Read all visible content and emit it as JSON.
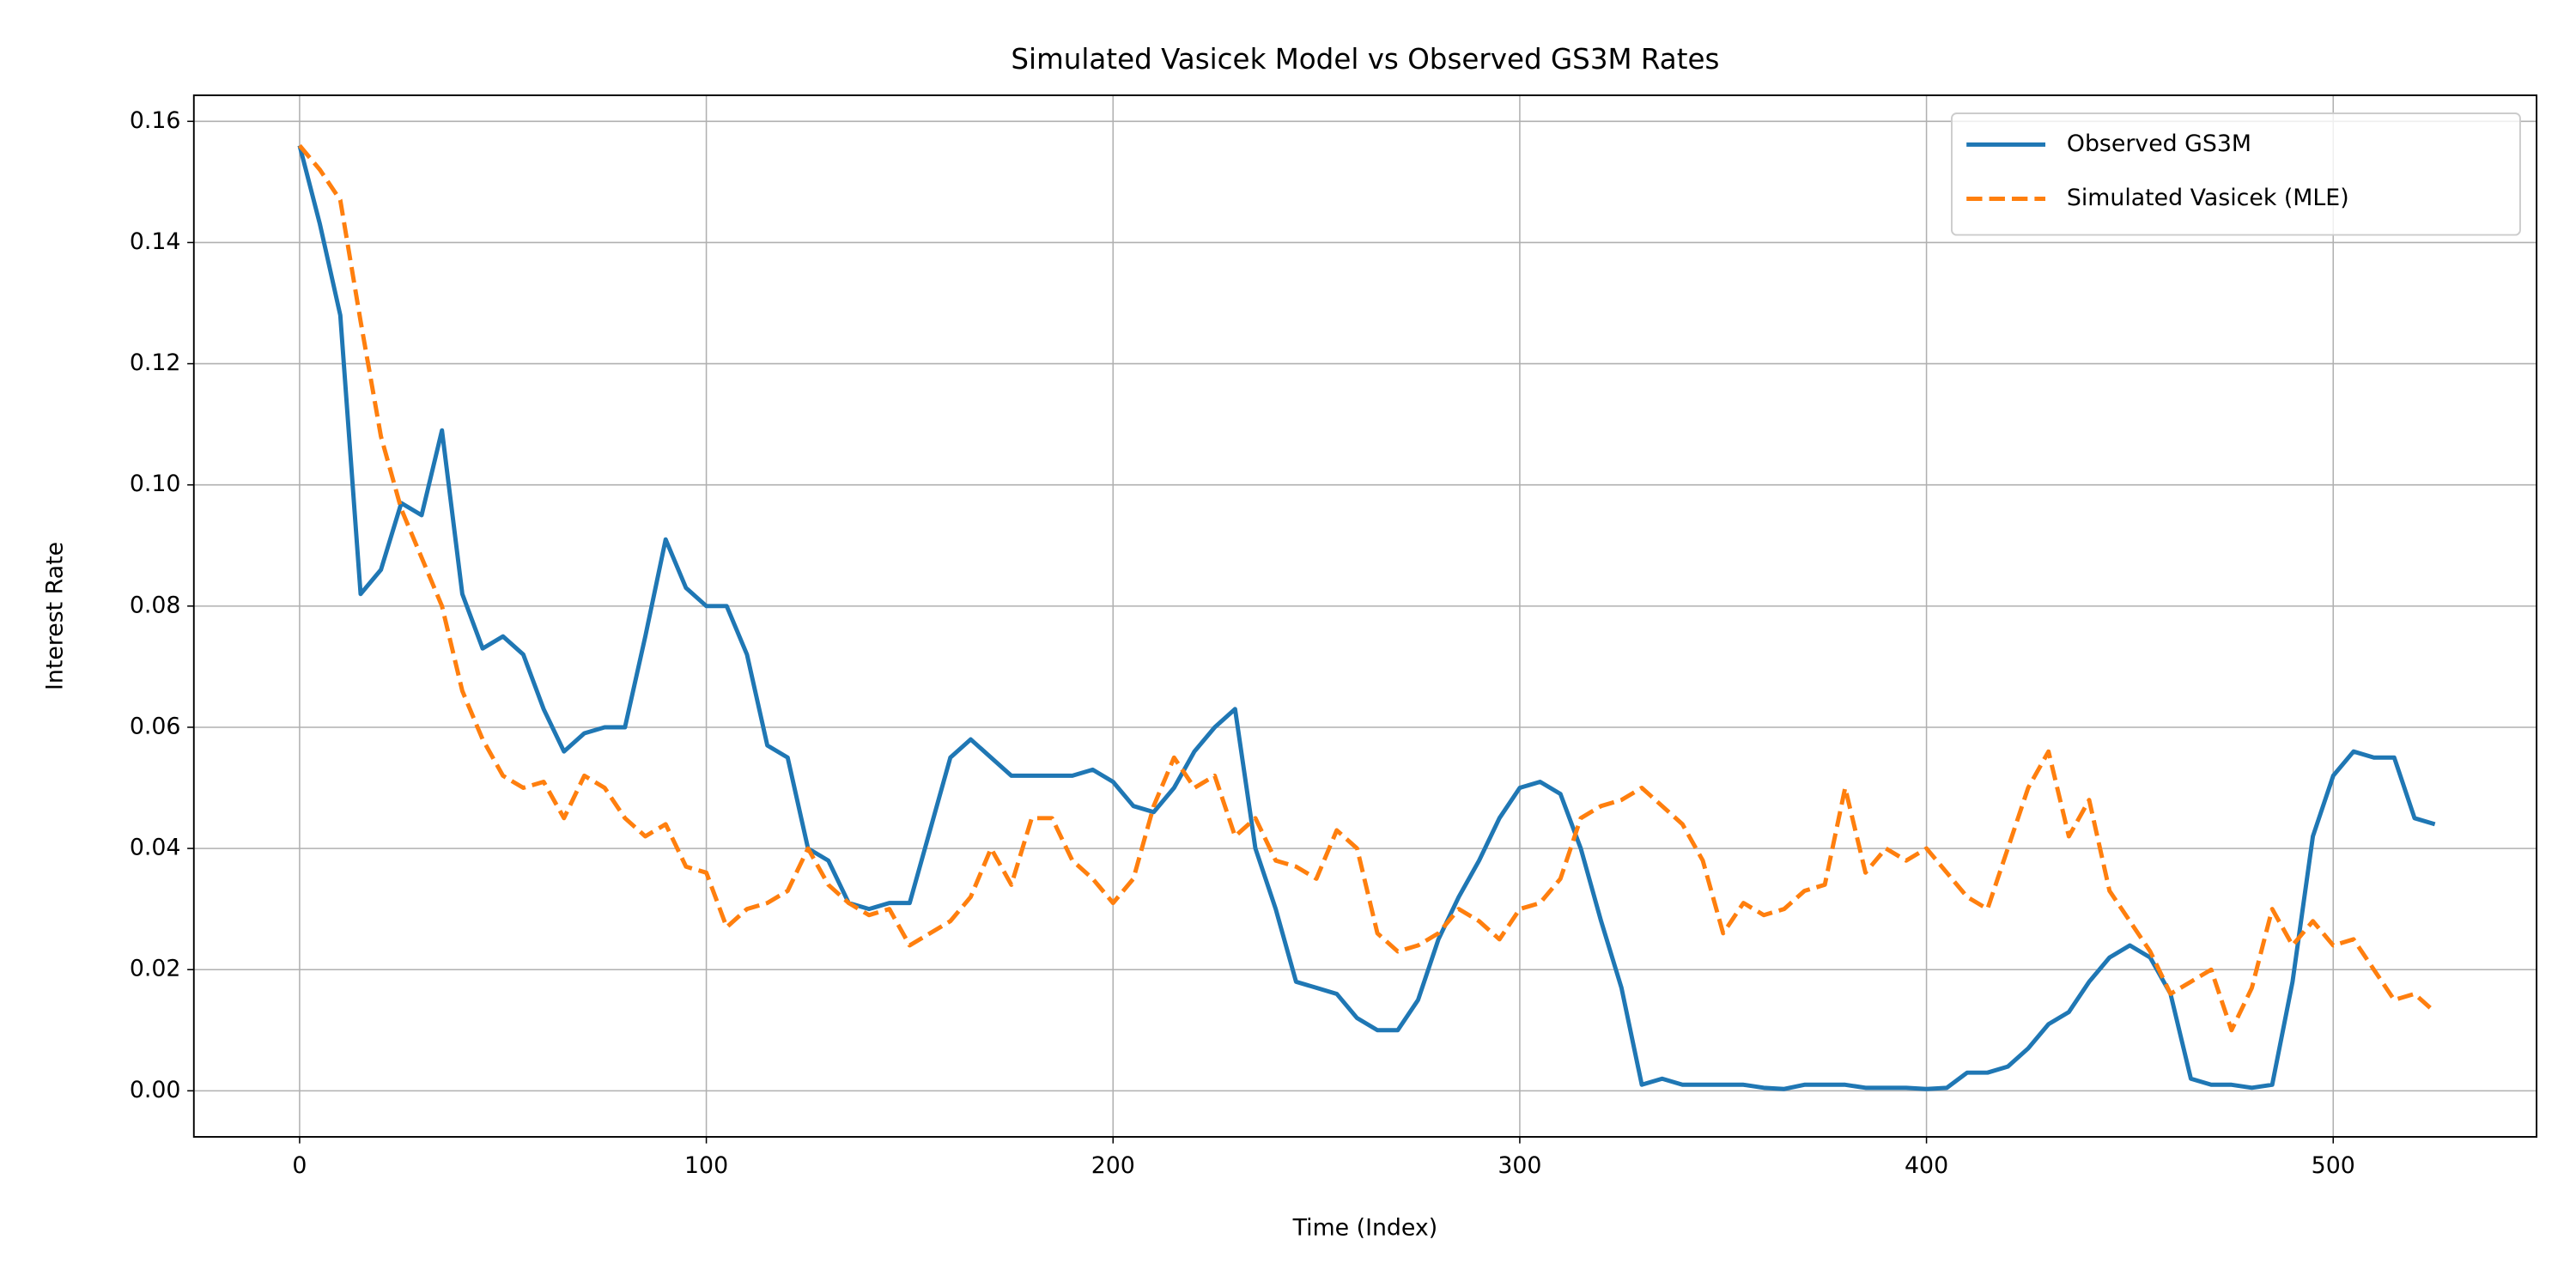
{
  "chart_data": {
    "type": "line",
    "title": "Simulated Vasicek Model vs Observed GS3M Rates",
    "xlabel": "Time (Index)",
    "ylabel": "Interest Rate",
    "x": [
      0,
      5,
      10,
      15,
      20,
      25,
      30,
      35,
      40,
      45,
      50,
      55,
      60,
      65,
      70,
      75,
      80,
      85,
      90,
      95,
      100,
      105,
      110,
      115,
      120,
      125,
      130,
      135,
      140,
      145,
      150,
      155,
      160,
      165,
      170,
      175,
      180,
      185,
      190,
      195,
      200,
      205,
      210,
      215,
      220,
      225,
      230,
      235,
      240,
      245,
      250,
      255,
      260,
      265,
      270,
      275,
      280,
      285,
      290,
      295,
      300,
      305,
      310,
      315,
      320,
      325,
      330,
      335,
      340,
      345,
      350,
      355,
      360,
      365,
      370,
      375,
      380,
      385,
      390,
      395,
      400,
      405,
      410,
      415,
      420,
      425,
      430,
      435,
      440,
      445,
      450,
      455,
      460,
      465,
      470,
      475,
      480,
      485,
      490,
      495,
      500,
      505,
      510,
      515,
      520,
      525
    ],
    "series": [
      {
        "name": "Observed GS3M",
        "color": "#1f77b4",
        "dashed": false,
        "values": [
          0.156,
          0.143,
          0.128,
          0.082,
          0.086,
          0.097,
          0.095,
          0.109,
          0.082,
          0.073,
          0.075,
          0.072,
          0.063,
          0.056,
          0.059,
          0.06,
          0.06,
          0.075,
          0.091,
          0.083,
          0.08,
          0.08,
          0.072,
          0.057,
          0.055,
          0.04,
          0.038,
          0.031,
          0.03,
          0.031,
          0.031,
          0.043,
          0.055,
          0.058,
          0.055,
          0.052,
          0.052,
          0.052,
          0.052,
          0.053,
          0.051,
          0.047,
          0.046,
          0.05,
          0.056,
          0.06,
          0.063,
          0.04,
          0.03,
          0.018,
          0.017,
          0.016,
          0.012,
          0.01,
          0.01,
          0.015,
          0.025,
          0.032,
          0.038,
          0.045,
          0.05,
          0.051,
          0.049,
          0.04,
          0.028,
          0.017,
          0.001,
          0.002,
          0.001,
          0.001,
          0.001,
          0.001,
          0.0005,
          0.0003,
          0.001,
          0.001,
          0.001,
          0.0005,
          0.0005,
          0.0005,
          0.0003,
          0.0005,
          0.003,
          0.003,
          0.004,
          0.007,
          0.011,
          0.013,
          0.018,
          0.022,
          0.024,
          0.022,
          0.016,
          0.002,
          0.001,
          0.001,
          0.0005,
          0.001,
          0.018,
          0.042,
          0.052,
          0.056,
          0.055,
          0.055,
          0.045,
          0.044
        ]
      },
      {
        "name": "Simulated Vasicek (MLE)",
        "color": "#ff7f0e",
        "dashed": true,
        "values": [
          0.156,
          0.152,
          0.147,
          0.127,
          0.108,
          0.096,
          0.088,
          0.08,
          0.066,
          0.058,
          0.052,
          0.05,
          0.051,
          0.045,
          0.052,
          0.05,
          0.045,
          0.042,
          0.044,
          0.037,
          0.036,
          0.027,
          0.03,
          0.031,
          0.033,
          0.04,
          0.034,
          0.031,
          0.029,
          0.03,
          0.024,
          0.026,
          0.028,
          0.032,
          0.04,
          0.034,
          0.045,
          0.045,
          0.038,
          0.035,
          0.031,
          0.035,
          0.047,
          0.055,
          0.05,
          0.052,
          0.042,
          0.045,
          0.038,
          0.037,
          0.035,
          0.043,
          0.04,
          0.026,
          0.023,
          0.024,
          0.026,
          0.03,
          0.028,
          0.025,
          0.03,
          0.031,
          0.035,
          0.045,
          0.047,
          0.048,
          0.05,
          0.047,
          0.044,
          0.038,
          0.026,
          0.031,
          0.029,
          0.03,
          0.033,
          0.034,
          0.05,
          0.036,
          0.04,
          0.038,
          0.04,
          0.036,
          0.032,
          0.03,
          0.04,
          0.05,
          0.056,
          0.042,
          0.048,
          0.033,
          0.028,
          0.023,
          0.016,
          0.018,
          0.02,
          0.01,
          0.017,
          0.03,
          0.024,
          0.028,
          0.024,
          0.025,
          0.02,
          0.015,
          0.016,
          0.013
        ]
      }
    ],
    "xlim": [
      -26,
      550
    ],
    "ylim": [
      -0.0076,
      0.1643
    ],
    "xticks": [
      0,
      100,
      200,
      300,
      400,
      500
    ],
    "yticks": [
      {
        "value": 0,
        "label": "0.00"
      },
      {
        "value": 0.02,
        "label": "0.02"
      },
      {
        "value": 0.04,
        "label": "0.04"
      },
      {
        "value": 0.06,
        "label": "0.06"
      },
      {
        "value": 0.08,
        "label": "0.08"
      },
      {
        "value": 0.1,
        "label": "0.10"
      },
      {
        "value": 0.12,
        "label": "0.12"
      },
      {
        "value": 0.14,
        "label": "0.14"
      },
      {
        "value": 0.16,
        "label": "0.16"
      }
    ],
    "grid": true,
    "legend": "upper right"
  }
}
